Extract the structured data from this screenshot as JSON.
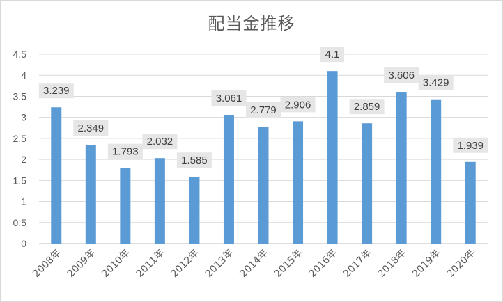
{
  "chart_data": {
    "type": "bar",
    "title": "配当金推移",
    "categories": [
      "2008年",
      "2009年",
      "2010年",
      "2011年",
      "2012年",
      "2013年",
      "2014年",
      "2015年",
      "2016年",
      "2017年",
      "2018年",
      "2019年",
      "2020年"
    ],
    "values": [
      3.239,
      2.349,
      1.793,
      2.032,
      1.585,
      3.061,
      2.779,
      2.906,
      4.1,
      2.859,
      3.606,
      3.429,
      1.939
    ],
    "data_labels": [
      "3.239",
      "2.349",
      "1.793",
      "2.032",
      "1.585",
      "3.061",
      "2.779",
      "2.906",
      "4.1",
      "2.859",
      "3.606",
      "3.429",
      "1.939"
    ],
    "y_ticks": [
      "0",
      "0.5",
      "1",
      "1.5",
      "2",
      "2.5",
      "3",
      "3.5",
      "4",
      "4.5"
    ],
    "ylim": [
      0,
      4.5
    ],
    "xlabel": "",
    "ylabel": "",
    "grid": true,
    "legend": "none",
    "colors": {
      "bar": "#5b9bd5",
      "grid": "#d9d9d9",
      "label_bg": "#e7e6e6",
      "text": "#595959"
    }
  }
}
